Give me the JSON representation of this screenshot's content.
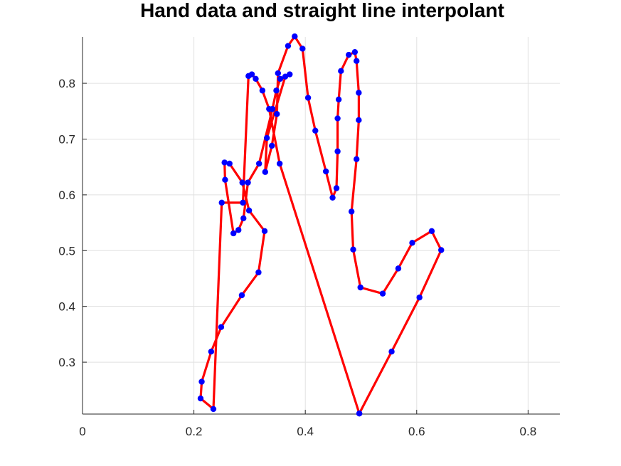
{
  "chart_data": {
    "type": "line",
    "title": "Hand data and straight line interpolant",
    "xlabel": "",
    "ylabel": "",
    "xlim": [
      0,
      0.857
    ],
    "ylim": [
      0.207,
      0.883
    ],
    "xticks": [
      0,
      0.2,
      0.4,
      0.6,
      0.8
    ],
    "xtick_labels": [
      "0",
      "0.2",
      "0.4",
      "0.6",
      "0.8"
    ],
    "yticks": [
      0.3,
      0.4,
      0.5,
      0.6,
      0.7,
      0.8
    ],
    "ytick_labels": [
      "0.3",
      "0.4",
      "0.5",
      "0.6",
      "0.7",
      "0.8"
    ],
    "grid": true,
    "colors": {
      "line": "#ff0000",
      "marker": "#0000ff",
      "grid": "#e1e1e1",
      "axis": "#262626"
    },
    "series": [
      {
        "x": [
          0.497,
          0.555,
          0.605,
          0.644,
          0.627,
          0.592,
          0.567,
          0.539,
          0.499,
          0.486,
          0.483,
          0.492,
          0.496,
          0.496,
          0.492,
          0.489,
          0.478,
          0.464,
          0.46,
          0.458,
          0.458,
          0.456,
          0.449,
          0.437,
          0.418,
          0.405,
          0.395,
          0.381,
          0.369,
          0.351,
          0.349,
          0.34,
          0.328,
          0.331,
          0.364,
          0.372,
          0.355,
          0.348,
          0.341,
          0.317,
          0.297,
          0.289,
          0.28,
          0.271,
          0.256,
          0.255,
          0.264,
          0.287,
          0.299,
          0.327,
          0.316,
          0.286,
          0.249,
          0.231,
          0.214,
          0.212,
          0.235,
          0.25,
          0.288,
          0.298,
          0.304,
          0.311,
          0.323,
          0.335,
          0.354,
          0.497
        ],
        "y": [
          0.208,
          0.319,
          0.416,
          0.501,
          0.535,
          0.514,
          0.468,
          0.423,
          0.434,
          0.502,
          0.57,
          0.664,
          0.734,
          0.783,
          0.84,
          0.856,
          0.851,
          0.822,
          0.771,
          0.737,
          0.678,
          0.612,
          0.595,
          0.642,
          0.715,
          0.774,
          0.862,
          0.884,
          0.867,
          0.818,
          0.745,
          0.688,
          0.641,
          0.702,
          0.812,
          0.816,
          0.808,
          0.787,
          0.754,
          0.656,
          0.622,
          0.558,
          0.537,
          0.531,
          0.627,
          0.658,
          0.656,
          0.622,
          0.572,
          0.535,
          0.461,
          0.42,
          0.363,
          0.319,
          0.265,
          0.235,
          0.216,
          0.586,
          0.586,
          0.813,
          0.816,
          0.808,
          0.787,
          0.754,
          0.656,
          0.208
        ]
      }
    ]
  }
}
